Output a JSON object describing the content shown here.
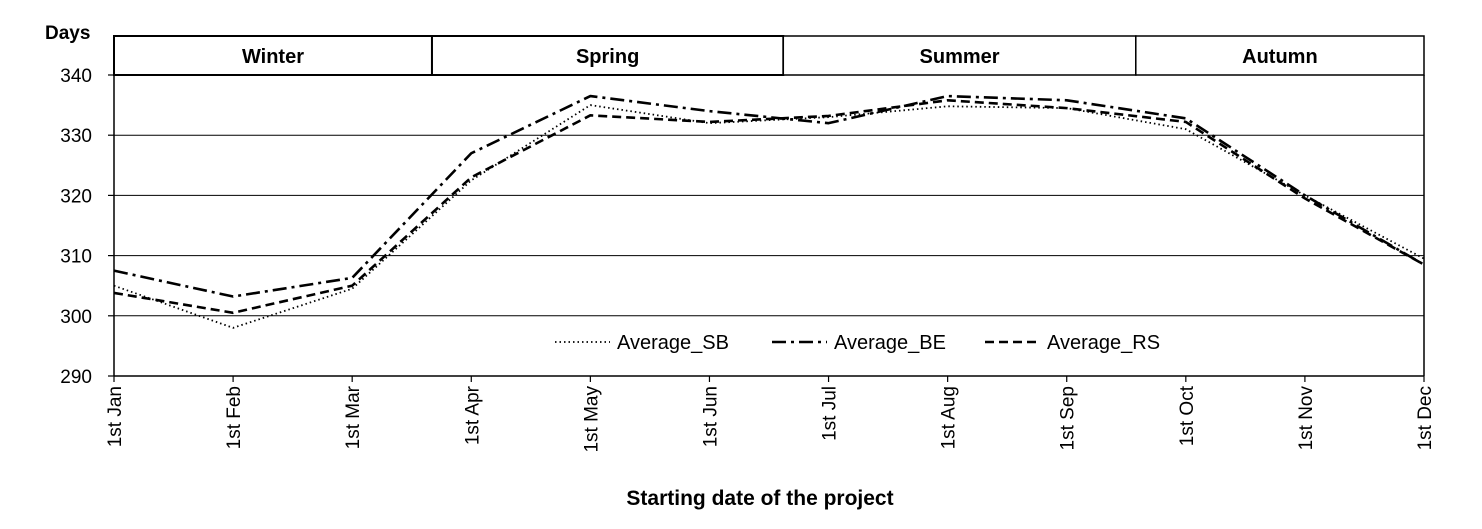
{
  "chart_data": {
    "type": "line",
    "title": "",
    "ylabel": "Days",
    "xlabel": "Starting date of the project",
    "ylim": [
      290,
      340
    ],
    "yticks": [
      290,
      300,
      310,
      320,
      330,
      340
    ],
    "grid": true,
    "legend_position": "bottom-center-inside",
    "categories": [
      "1st Jan",
      "1st Feb",
      "1st Mar",
      "1st Apr",
      "1st May",
      "1st Jun",
      "1st Jul",
      "1st Aug",
      "1st Sep",
      "1st Oct",
      "1st Nov",
      "1st Dec"
    ],
    "seasons": [
      {
        "label": "Winter",
        "from": 0,
        "to": 2.67
      },
      {
        "label": "Spring",
        "from": 2.67,
        "to": 5.62
      },
      {
        "label": "Summer",
        "from": 5.62,
        "to": 8.58
      },
      {
        "label": "Autumn",
        "from": 8.58,
        "to": 11
      }
    ],
    "series": [
      {
        "name": "Average_SB",
        "style": "dotted",
        "values": [
          305.0,
          298.0,
          304.5,
          322.5,
          335.0,
          332.0,
          333.0,
          334.8,
          334.5,
          331.0,
          320.0,
          309.5
        ]
      },
      {
        "name": "Average_BE",
        "style": "dashdot",
        "values": [
          307.5,
          303.2,
          306.3,
          327.0,
          336.5,
          334.0,
          332.0,
          336.5,
          335.8,
          332.8,
          320.0,
          308.5
        ]
      },
      {
        "name": "Average_RS",
        "style": "dashed",
        "values": [
          303.8,
          300.5,
          305.0,
          323.0,
          333.3,
          332.2,
          333.2,
          335.8,
          334.5,
          332.2,
          319.5,
          308.5
        ]
      }
    ]
  }
}
